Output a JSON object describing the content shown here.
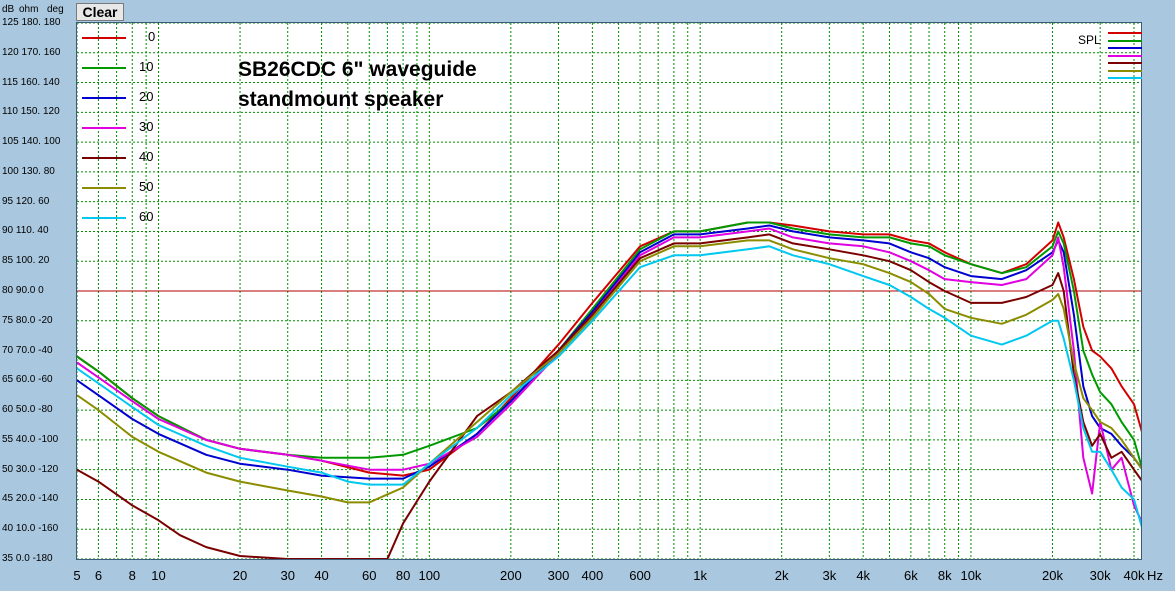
{
  "toolbar": {
    "clear_label": "Clear"
  },
  "axis_header": {
    "db": "dB",
    "ohm": "ohm",
    "deg": "deg"
  },
  "y_tick_labels": [
    "125 180. 180",
    "120 170. 160",
    "115 160. 140",
    "110 150. 120",
    "105 140. 100",
    "100 130. 80",
    "95 120. 60",
    "90 110. 40",
    "85 100. 20",
    "80 90.0 0",
    "75 80.0 -20",
    "70 70.0 -40",
    "65 60.0 -60",
    "60 50.0 -80",
    "55 40.0 -100",
    "50 30.0 -120",
    "45 20.0 -140",
    "40 10.0 -160",
    "35 0.0 -180"
  ],
  "x_tick_labels": [
    "5",
    "6",
    "8",
    "10",
    "20",
    "30",
    "40",
    "60",
    "80",
    "100",
    "200",
    "300",
    "400",
    "600",
    "1k",
    "2k",
    "3k",
    "4k",
    "6k",
    "8k",
    "10k",
    "20k",
    "30k",
    "40k",
    "Hz"
  ],
  "title_lines": [
    "SB26CDC 6\" waveguide",
    "standmount speaker"
  ],
  "legend_spl": "SPL",
  "colors": {
    "s0": "#d40000",
    "s10": "#009a00",
    "s20": "#0000d0",
    "s30": "#e000e0",
    "s40": "#7a0000",
    "s50": "#8c8c00",
    "s60": "#00c8f0",
    "ref": "#b00000",
    "grid": "#009000",
    "plot_bg": "#ffffff",
    "window_bg": "#a9c7de"
  },
  "chart_data": {
    "type": "line",
    "xscale": "log",
    "xlim": [
      5,
      45000
    ],
    "ylim": [
      35,
      125
    ],
    "ylabel": "dB",
    "reference_line_y": 80,
    "series": [
      {
        "name": "0",
        "color": "#d40000",
        "x": [
          5,
          6,
          8,
          10,
          15,
          20,
          30,
          40,
          60,
          80,
          100,
          150,
          200,
          300,
          400,
          600,
          800,
          1000,
          1500,
          1800,
          2200,
          3000,
          4000,
          5000,
          6000,
          7000,
          8000,
          10000,
          13000,
          16000,
          20000,
          21000,
          22000,
          24000,
          26000,
          28000,
          30000,
          33000,
          36000,
          40000,
          43000
        ],
        "y": [
          69,
          66.5,
          62,
          59,
          55,
          53.5,
          52.5,
          51.5,
          49.5,
          49,
          50,
          56,
          62,
          71,
          78,
          87.5,
          90,
          90,
          91.5,
          91.5,
          91,
          90,
          89.5,
          89.5,
          88.5,
          88,
          86.5,
          84.5,
          83,
          84.5,
          88.5,
          91.5,
          89,
          82,
          74,
          70,
          69,
          67,
          64,
          61,
          56
        ]
      },
      {
        "name": "10",
        "color": "#009a00",
        "x": [
          5,
          6,
          8,
          10,
          15,
          20,
          30,
          40,
          60,
          80,
          100,
          150,
          200,
          300,
          400,
          600,
          800,
          1000,
          1500,
          1800,
          2200,
          3000,
          4000,
          5000,
          6000,
          7000,
          8000,
          10000,
          13000,
          16000,
          20000,
          21000,
          22000,
          24000,
          26000,
          28000,
          30000,
          33000,
          36000,
          40000,
          43000
        ],
        "y": [
          69,
          66.5,
          62,
          59,
          55,
          53.5,
          52.5,
          52,
          52,
          52.5,
          54,
          57,
          61.5,
          70,
          77,
          87,
          90,
          90,
          91.5,
          91.5,
          90.5,
          89.5,
          89,
          89,
          88,
          87.5,
          86,
          84.5,
          83,
          84,
          87.5,
          90,
          88,
          80,
          70,
          66,
          63,
          61,
          58,
          55,
          50
        ]
      },
      {
        "name": "20",
        "color": "#0000d0",
        "x": [
          5,
          6,
          8,
          10,
          15,
          20,
          30,
          40,
          60,
          80,
          100,
          150,
          200,
          300,
          400,
          600,
          800,
          1000,
          1500,
          1800,
          2200,
          3000,
          4000,
          5000,
          6000,
          7000,
          8000,
          10000,
          13000,
          16000,
          20000,
          21000,
          22000,
          24000,
          26000,
          28000,
          30000,
          33000,
          36000,
          40000,
          43000
        ],
        "y": [
          65,
          62.5,
          58.5,
          56,
          52.5,
          51,
          50,
          49,
          48.5,
          48.5,
          50.5,
          56,
          61.5,
          70,
          76.5,
          86.5,
          89.5,
          89.5,
          90.5,
          91,
          90,
          89,
          88.5,
          88,
          86.5,
          85.5,
          84,
          82.5,
          82,
          83.5,
          86.5,
          88.5,
          86.5,
          76,
          64,
          59,
          57,
          56,
          54,
          52,
          50
        ]
      },
      {
        "name": "30",
        "color": "#e000e0",
        "x": [
          5,
          6,
          8,
          10,
          15,
          20,
          30,
          40,
          60,
          80,
          100,
          150,
          200,
          300,
          400,
          600,
          800,
          1000,
          1500,
          1800,
          2200,
          3000,
          4000,
          5000,
          6000,
          7000,
          8000,
          10000,
          13000,
          16000,
          20000,
          21000,
          22000,
          24000,
          26000,
          28000,
          30000,
          33000,
          36000,
          40000,
          43000
        ],
        "y": [
          68,
          65.5,
          61.5,
          58.5,
          55,
          53.5,
          52.5,
          51.5,
          50,
          50,
          51,
          55.5,
          61,
          69.5,
          76,
          86,
          89,
          89,
          90,
          90.5,
          89,
          88,
          87.5,
          86.5,
          85,
          83.5,
          82,
          81.5,
          81,
          82,
          86,
          89,
          84,
          70,
          52,
          46,
          58,
          50,
          52,
          44,
          41
        ]
      },
      {
        "name": "40",
        "color": "#7a0000",
        "x": [
          5,
          6,
          8,
          10,
          12,
          15,
          20,
          30,
          40,
          50,
          60,
          65,
          70,
          80,
          100,
          150,
          200,
          300,
          400,
          600,
          800,
          1000,
          1500,
          1800,
          2200,
          3000,
          4000,
          5000,
          6000,
          7000,
          8000,
          10000,
          13000,
          16000,
          20000,
          21000,
          22000,
          24000,
          26000,
          28000,
          30000,
          33000,
          36000,
          40000,
          43000
        ],
        "y": [
          50,
          48,
          44,
          41.5,
          39,
          37,
          35.5,
          35,
          35,
          35,
          35,
          35,
          35,
          41,
          48,
          59,
          63,
          70,
          76,
          85.5,
          88,
          88,
          89,
          89.5,
          88,
          87,
          86,
          85,
          83.5,
          81.5,
          80,
          78,
          78,
          79,
          81,
          83,
          80,
          66,
          58,
          54,
          56,
          52,
          53,
          50,
          48
        ]
      },
      {
        "name": "50",
        "color": "#8c8c00",
        "x": [
          5,
          6,
          8,
          10,
          15,
          20,
          30,
          40,
          50,
          60,
          80,
          100,
          150,
          200,
          300,
          400,
          600,
          800,
          1000,
          1500,
          1800,
          2200,
          3000,
          4000,
          5000,
          6000,
          7000,
          8000,
          10000,
          13000,
          16000,
          20000,
          21000,
          22000,
          24000,
          26000,
          28000,
          30000,
          33000,
          36000,
          40000,
          43000
        ],
        "y": [
          62.5,
          60,
          55.5,
          53,
          49.5,
          48,
          46.5,
          45.5,
          44.5,
          44.5,
          47,
          51,
          58,
          63,
          69.5,
          75.5,
          85,
          87.5,
          87.5,
          88.5,
          88.5,
          87,
          85.5,
          84.5,
          83,
          81.5,
          79.5,
          77,
          75.5,
          74.5,
          76,
          78.5,
          79.5,
          77,
          68,
          62,
          60,
          58,
          57,
          55,
          52,
          50
        ]
      },
      {
        "name": "60",
        "color": "#00c8f0",
        "x": [
          5,
          6,
          8,
          10,
          15,
          20,
          30,
          40,
          50,
          60,
          80,
          100,
          150,
          200,
          300,
          400,
          600,
          800,
          1000,
          1500,
          1800,
          2200,
          3000,
          4000,
          5000,
          6000,
          7000,
          8000,
          10000,
          13000,
          16000,
          20000,
          21000,
          22000,
          24000,
          26000,
          28000,
          30000,
          33000,
          36000,
          40000,
          43000
        ],
        "y": [
          67,
          64.5,
          60.5,
          57.5,
          54,
          52,
          50.5,
          49.5,
          48,
          47.5,
          47.5,
          51,
          57,
          62.5,
          69,
          75,
          84,
          86,
          86,
          87,
          87.5,
          86,
          84.5,
          82.5,
          81,
          79,
          77,
          75.5,
          72.5,
          71,
          72.5,
          75,
          75,
          72,
          65,
          57,
          53,
          53,
          50,
          47,
          45,
          40
        ]
      }
    ]
  }
}
